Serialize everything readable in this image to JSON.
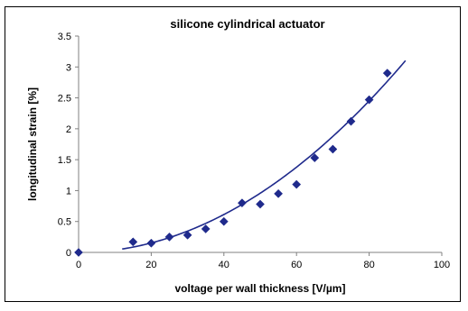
{
  "chart_data": {
    "type": "scatter",
    "title": "silicone cylindrical actuator",
    "xlabel": "voltage per wall thickness [V/µm]",
    "ylabel": "longitudinal strain [%]",
    "xlim": [
      0,
      100
    ],
    "ylim": [
      0,
      3.5
    ],
    "x_ticks": [
      "0",
      "20",
      "40",
      "60",
      "80",
      "100"
    ],
    "y_ticks": [
      "0",
      "0.5",
      "1",
      "1.5",
      "2",
      "2.5",
      "3",
      "3.5"
    ],
    "grid": false,
    "legend": "none",
    "series": [
      {
        "marker": "diamond",
        "color": "#1f2a8c",
        "x": [
          0,
          15,
          20,
          25,
          30,
          35,
          40,
          45,
          50,
          55,
          60,
          65,
          70,
          75,
          80,
          85
        ],
        "y": [
          0,
          0.17,
          0.15,
          0.25,
          0.28,
          0.38,
          0.5,
          0.8,
          0.78,
          0.95,
          1.1,
          1.53,
          1.67,
          2.12,
          2.47,
          2.9
        ]
      }
    ],
    "trendline": {
      "type": "power",
      "color": "#1f2a8c",
      "x_start": 12,
      "x_end": 90,
      "exponent": 2,
      "coefficient": 0.000383
    }
  }
}
